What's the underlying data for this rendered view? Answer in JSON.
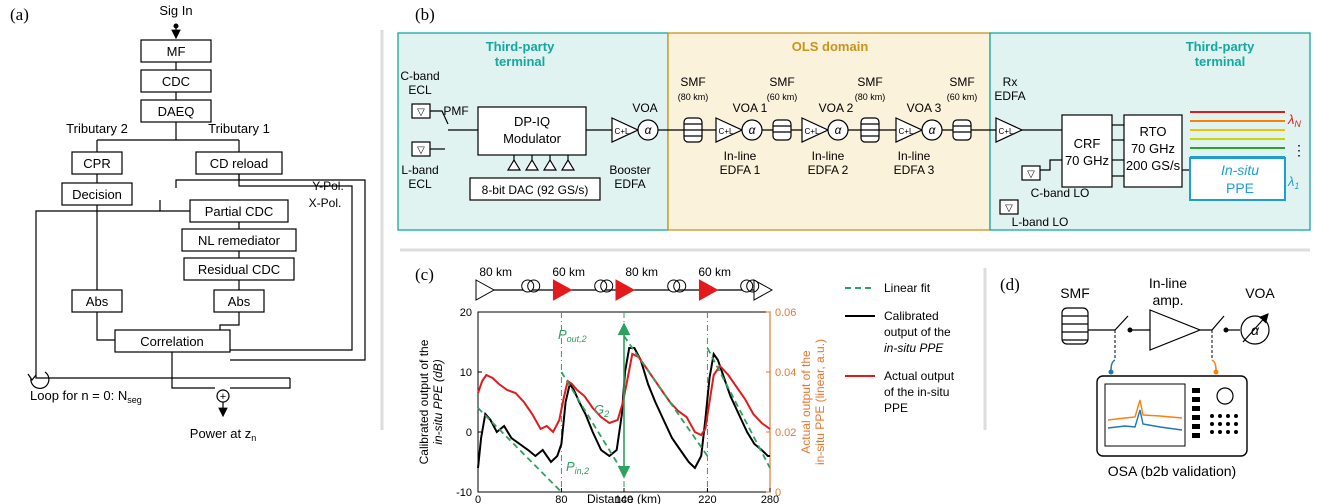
{
  "panel_a": {
    "label": "(a)",
    "sig_in": "Sig In",
    "blocks": [
      "MF",
      "CDC",
      "DAEQ"
    ],
    "tributary2": "Tributary 2",
    "tributary1": "Tributary 1",
    "cpr": "CPR",
    "decision": "Decision",
    "cd_reload": "CD reload",
    "ypol": "Y-Pol.",
    "xpol": "X-Pol.",
    "partial_cdc": "Partial CDC",
    "nl_remediator": "NL remediator",
    "residual_cdc": "Residual CDC",
    "abs_left": "Abs",
    "abs_right": "Abs",
    "correlation": "Correlation",
    "loop": "Loop for n = 0: N",
    "loop_sub": "seg",
    "power": "Power at z",
    "power_sub": "n"
  },
  "panel_b": {
    "label": "(b)",
    "terminal_left": [
      "Third-party",
      "terminal"
    ],
    "terminal_right": [
      "Third-party",
      "terminal"
    ],
    "ols_domain": "OLS domain",
    "cband_ecl": [
      "C-band",
      "ECL"
    ],
    "lband_ecl": [
      "L-band",
      "ECL"
    ],
    "pmf": "PMF",
    "modulator": [
      "DP-IQ",
      "Modulator"
    ],
    "dac": "8-bit DAC (92 GS/s)",
    "voa": "VOA",
    "booster": [
      "Booster",
      "EDFA"
    ],
    "amp_label": "C+L",
    "alpha": "α",
    "smf_spans": [
      {
        "label": "SMF",
        "length": "(80 km)"
      },
      {
        "label": "SMF",
        "length": "(60 km)"
      },
      {
        "label": "SMF",
        "length": "(80 km)"
      },
      {
        "label": "SMF",
        "length": "(60 km)"
      }
    ],
    "voa_labels": [
      "VOA 1",
      "VOA 2",
      "VOA 3"
    ],
    "inline_edfa": [
      [
        "In-line",
        "EDFA 1"
      ],
      [
        "In-line",
        "EDFA 2"
      ],
      [
        "In-line",
        "EDFA 3"
      ]
    ],
    "rx_edfa": [
      "Rx",
      "EDFA"
    ],
    "crf": [
      "CRF",
      "70 GHz"
    ],
    "rto": [
      "RTO",
      "70 GHz",
      "200 GS/s"
    ],
    "cband_lo": "C-band LO",
    "lband_lo": "L-band LO",
    "insitu_ppe": [
      "In-situ",
      "PPE"
    ],
    "lambda_n": "λ",
    "lambda_n_sub": "N",
    "lambda_1": "λ",
    "lambda_1_sub": "1",
    "dots": "⋮",
    "channel_colors": [
      "#e31a1c",
      "#ff7f00",
      "#f2c200",
      "#c6d800",
      "#33a02c",
      "#1f9fd0"
    ]
  },
  "panel_c": {
    "label": "(c)",
    "span_lengths": [
      "80 km",
      "60 km",
      "80 km",
      "60 km"
    ],
    "legend": [
      {
        "label": "Linear fit",
        "color": "#2ca25f"
      },
      {
        "label": [
          "Calibrated",
          "output of the",
          "in-situ PPE"
        ],
        "color": "#000000"
      },
      {
        "label": [
          "Actual output",
          "of the in-situ",
          "PPE"
        ],
        "color": "#e31a1c"
      }
    ],
    "annotations": {
      "pout": "P",
      "pout_sub": "out,2",
      "g": "G",
      "g_sub": "2",
      "pin": "P",
      "pin_sub": "in,2"
    }
  },
  "chart_data": {
    "type": "line",
    "xlabel": "Distance (km)",
    "ylabel": [
      "Calibrated output of the",
      "in-situ PPE (dB)"
    ],
    "ylabel_right": [
      "Actual output of the",
      "in-situ PPE (linear, a.u.)"
    ],
    "xlim": [
      0,
      280
    ],
    "ylim": [
      -10,
      20
    ],
    "ylim_right": [
      0,
      0.06
    ],
    "xticks": [
      0,
      80,
      140,
      220,
      280
    ],
    "yticks": [
      -10,
      0,
      10,
      20
    ],
    "yticks_right": [
      0,
      0.02,
      0.04,
      0.06
    ],
    "vlines": [
      80,
      140,
      220
    ],
    "series": [
      {
        "name": "Calibrated output of the in-situ PPE",
        "color": "#000000",
        "axis": "left",
        "x": [
          0,
          3,
          7,
          12,
          18,
          25,
          32,
          40,
          48,
          55,
          62,
          70,
          76,
          80,
          84,
          88,
          92,
          97,
          103,
          110,
          118,
          126,
          133,
          138,
          141,
          145,
          150,
          156,
          163,
          170,
          178,
          186,
          194,
          202,
          208,
          214,
          218,
          222,
          226,
          230,
          236,
          242,
          250,
          258,
          265,
          272,
          278,
          280
        ],
        "y": [
          -6,
          -1,
          3,
          2,
          0,
          1,
          -1,
          -2,
          -3,
          -4,
          -3,
          -5,
          -4,
          -2,
          5,
          8,
          7,
          5,
          3,
          0,
          -3,
          -4,
          -3,
          3,
          10,
          14,
          14,
          12,
          8,
          5,
          2,
          -1,
          -3,
          -5,
          -6,
          -4,
          2,
          9,
          13,
          12,
          9,
          6,
          3,
          0,
          -2,
          -3,
          -4,
          -4
        ]
      },
      {
        "name": "Actual output of the in-situ PPE",
        "color": "#e31a1c",
        "axis": "right",
        "x": [
          0,
          4,
          8,
          14,
          20,
          28,
          36,
          44,
          52,
          60,
          66,
          72,
          78,
          82,
          86,
          90,
          95,
          102,
          110,
          118,
          126,
          134,
          139,
          143,
          148,
          154,
          160,
          168,
          176,
          184,
          192,
          200,
          208,
          214,
          218,
          222,
          226,
          232,
          240,
          248,
          256,
          264,
          272,
          280
        ],
        "y": [
          0.033,
          0.037,
          0.039,
          0.038,
          0.036,
          0.034,
          0.033,
          0.03,
          0.026,
          0.021,
          0.022,
          0.02,
          0.024,
          0.031,
          0.037,
          0.036,
          0.034,
          0.032,
          0.028,
          0.025,
          0.023,
          0.024,
          0.03,
          0.037,
          0.046,
          0.045,
          0.042,
          0.038,
          0.034,
          0.03,
          0.027,
          0.025,
          0.02,
          0.019,
          0.021,
          0.03,
          0.039,
          0.042,
          0.039,
          0.035,
          0.031,
          0.026,
          0.023,
          0.021
        ]
      },
      {
        "name": "Linear fit",
        "color": "#2ca25f",
        "axis": "left",
        "dashed": true,
        "segments": [
          [
            [
              0,
              4
            ],
            [
              80,
              -10
            ]
          ],
          [
            [
              80,
              10
            ],
            [
              140,
              -7
            ]
          ],
          [
            [
              140,
              16
            ],
            [
              220,
              -4
            ]
          ],
          [
            [
              220,
              14
            ],
            [
              280,
              -6
            ]
          ]
        ]
      }
    ]
  },
  "panel_d": {
    "label": "(d)",
    "smf": "SMF",
    "amp": [
      "In-line",
      "amp."
    ],
    "voa": "VOA",
    "alpha": "α",
    "osa": "OSA (b2b validation)"
  }
}
